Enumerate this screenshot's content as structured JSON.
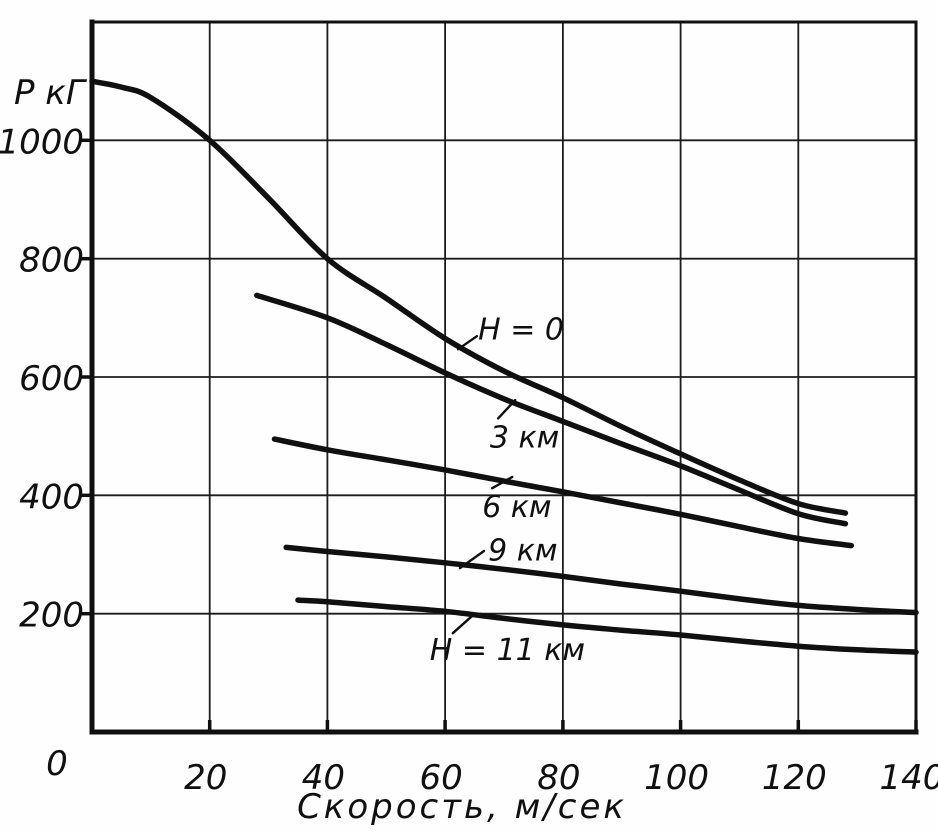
{
  "figure": {
    "description_visible_text_only": true
  },
  "chart_data": {
    "type": "line",
    "title": "",
    "xlabel": "Скорость, м/сек",
    "ylabel": "P кГ",
    "xlim": [
      0,
      140
    ],
    "ylim": [
      0,
      1200
    ],
    "x_ticks": [
      0,
      20,
      40,
      60,
      80,
      100,
      120,
      140
    ],
    "y_ticks": [
      200,
      400,
      600,
      800,
      1000
    ],
    "origin_label": "0",
    "grid": true,
    "legend_position": "inline curve labels with leader lines",
    "ink_color": "#101010",
    "background_color": "#fefefe",
    "series": [
      {
        "name": "H = 0",
        "altitude_km": 0,
        "points": [
          [
            0,
            1100
          ],
          [
            5,
            1090
          ],
          [
            10,
            1072
          ],
          [
            20,
            1000
          ],
          [
            30,
            902
          ],
          [
            40,
            800
          ],
          [
            50,
            733
          ],
          [
            60,
            665
          ],
          [
            70,
            610
          ],
          [
            80,
            565
          ],
          [
            90,
            516
          ],
          [
            100,
            470
          ],
          [
            110,
            426
          ],
          [
            120,
            386
          ],
          [
            128,
            370
          ]
        ],
        "label": {
          "text": "H = 0",
          "at": [
            65.6,
            663
          ],
          "leader": [
            [
              62.2,
              647
            ],
            [
              65.4,
              669
            ]
          ]
        }
      },
      {
        "name": "3 км",
        "altitude_km": 3,
        "points": [
          [
            28,
            738
          ],
          [
            40,
            700
          ],
          [
            50,
            655
          ],
          [
            60,
            607
          ],
          [
            70,
            563
          ],
          [
            80,
            525
          ],
          [
            90,
            487
          ],
          [
            100,
            450
          ],
          [
            110,
            409
          ],
          [
            120,
            369
          ],
          [
            128,
            352
          ]
        ],
        "label": {
          "text": "3 км",
          "at": [
            67.6,
            481
          ],
          "leader": [
            [
              69.0,
              530
            ],
            [
              71.9,
              561
            ]
          ]
        }
      },
      {
        "name": "6 км",
        "altitude_km": 6,
        "points": [
          [
            31,
            495
          ],
          [
            40,
            477
          ],
          [
            50,
            460
          ],
          [
            60,
            443
          ],
          [
            70,
            424
          ],
          [
            80,
            406
          ],
          [
            90,
            387
          ],
          [
            100,
            368
          ],
          [
            110,
            347
          ],
          [
            120,
            327
          ],
          [
            129,
            315
          ]
        ],
        "label": {
          "text": "6 км",
          "at": [
            66.3,
            363
          ],
          "leader": [
            [
              68.0,
              412
            ],
            [
              71.4,
              431
            ]
          ]
        }
      },
      {
        "name": "9 км",
        "altitude_km": 9,
        "points": [
          [
            33,
            312
          ],
          [
            40,
            305
          ],
          [
            50,
            296
          ],
          [
            60,
            286
          ],
          [
            70,
            275
          ],
          [
            80,
            263
          ],
          [
            90,
            250
          ],
          [
            100,
            238
          ],
          [
            110,
            225
          ],
          [
            120,
            214
          ],
          [
            130,
            207
          ],
          [
            140,
            202
          ]
        ],
        "label": {
          "text": "9 км",
          "at": [
            67.3,
            290
          ],
          "leader": [
            [
              62.5,
              277
            ],
            [
              66.6,
              306
            ]
          ]
        }
      },
      {
        "name": "H = 11 км",
        "altitude_km": 11,
        "points": [
          [
            35,
            223
          ],
          [
            40,
            220
          ],
          [
            50,
            212
          ],
          [
            60,
            204
          ],
          [
            70,
            192
          ],
          [
            80,
            181
          ],
          [
            90,
            172
          ],
          [
            100,
            164
          ],
          [
            110,
            154
          ],
          [
            120,
            145
          ],
          [
            130,
            139
          ],
          [
            140,
            135
          ]
        ],
        "label": {
          "text": "H = 11 км",
          "at": [
            57.4,
            122
          ],
          "leader": [
            [
              61.3,
              167
            ],
            [
              64.9,
              199
            ]
          ]
        }
      }
    ]
  }
}
